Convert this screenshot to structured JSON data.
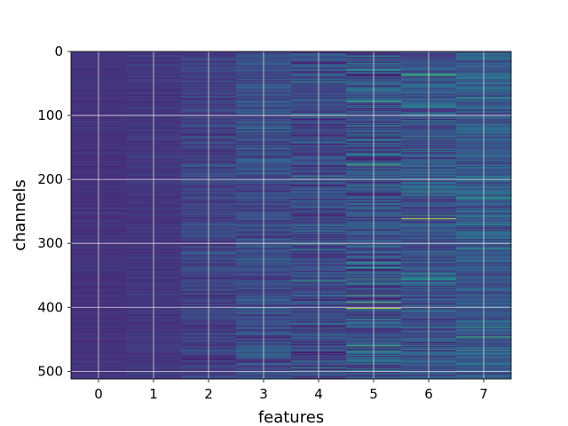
{
  "chart_data": {
    "type": "heatmap",
    "title": "",
    "xlabel": "features",
    "ylabel": "channels",
    "x": [
      0,
      1,
      2,
      3,
      4,
      5,
      6,
      7
    ],
    "xlim": [
      -0.5,
      7.5
    ],
    "ylim": [
      512,
      0
    ],
    "y_inverted": true,
    "x_ticks": [
      0,
      1,
      2,
      3,
      4,
      5,
      6,
      7
    ],
    "y_ticks": [
      0,
      100,
      200,
      300,
      400,
      500
    ],
    "n_channels": 512,
    "n_features": 8,
    "colormap": "viridis",
    "grid": true,
    "column_spread": [
      0.06,
      0.09,
      0.16,
      0.22,
      0.26,
      0.34,
      0.3,
      0.26
    ],
    "column_base": [
      0.14,
      0.15,
      0.17,
      0.2,
      0.18,
      0.2,
      0.22,
      0.24
    ],
    "highlights": [
      {
        "feature": 5,
        "channel": 401,
        "value": 0.95
      },
      {
        "feature": 6,
        "channel": 261,
        "value": 1.0
      },
      {
        "feature": 6,
        "channel": 220,
        "value": 0.6
      },
      {
        "feature": 5,
        "channel": 60,
        "value": 0.55
      }
    ]
  }
}
